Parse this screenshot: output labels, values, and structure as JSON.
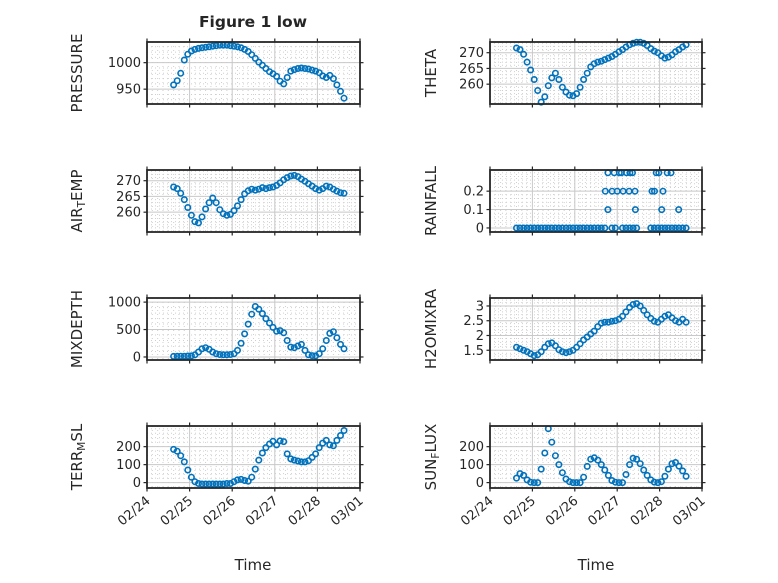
{
  "figure": {
    "title": "Figure 1 low",
    "xlabel": "Time",
    "colors": {
      "marker": "#0072BD",
      "axis": "#262626",
      "grid_major": "#c8c8c8",
      "grid_minor": "#cfcfcf",
      "text": "#262626",
      "background": "#ffffff"
    }
  },
  "time_axis": {
    "xlim": [
      0,
      5
    ],
    "xticks": [
      0,
      1,
      2,
      3,
      4,
      5
    ],
    "xticklabels": [
      "02/24",
      "02/25",
      "02/26",
      "02/27",
      "02/28",
      "03/01"
    ],
    "t": [
      0.625,
      0.708,
      0.792,
      0.875,
      0.958,
      1.042,
      1.125,
      1.208,
      1.292,
      1.375,
      1.458,
      1.542,
      1.625,
      1.708,
      1.792,
      1.875,
      1.958,
      2.042,
      2.125,
      2.208,
      2.292,
      2.375,
      2.458,
      2.542,
      2.625,
      2.708,
      2.792,
      2.875,
      2.958,
      3.042,
      3.125,
      3.208,
      3.292,
      3.375,
      3.458,
      3.542,
      3.625,
      3.708,
      3.792,
      3.875,
      3.958,
      4.042,
      4.125,
      4.208,
      4.292,
      4.375,
      4.458,
      4.542,
      4.625
    ]
  },
  "chart_data": [
    {
      "type": "scatter",
      "name": "PRESSURE",
      "row": 0,
      "col": 0,
      "ylabel": [
        [
          "PRESSURE",
          0
        ]
      ],
      "yticks": [
        950,
        1000
      ],
      "ylim": [
        922,
        1039
      ],
      "yminor": 10,
      "y": [
        958,
        966,
        980,
        1005,
        1016,
        1022,
        1025,
        1027,
        1028,
        1029,
        1030,
        1031,
        1032,
        1033,
        1033,
        1033,
        1032,
        1031,
        1030,
        1028,
        1025,
        1021,
        1015,
        1008,
        1001,
        995,
        989,
        983,
        979,
        974,
        965,
        960,
        972,
        984,
        987,
        989,
        990,
        989,
        988,
        986,
        984,
        981,
        975,
        972,
        976,
        970,
        958,
        946,
        933
      ]
    },
    {
      "type": "scatter",
      "name": "THETA",
      "row": 0,
      "col": 1,
      "ylabel": [
        [
          "THETA",
          0
        ]
      ],
      "yticks": [
        260,
        265,
        270
      ],
      "ylim": [
        253.7,
        273.4
      ],
      "yminor": 1,
      "y": [
        271.5,
        271.0,
        269.5,
        267.0,
        264.5,
        261.5,
        258.0,
        254.3,
        256.0,
        259.5,
        262.0,
        263.5,
        261.5,
        259.0,
        257.5,
        256.5,
        256.3,
        257.0,
        259.0,
        261.5,
        263.5,
        265.5,
        266.5,
        267.0,
        267.3,
        267.8,
        268.3,
        268.8,
        269.5,
        270.3,
        271.0,
        271.8,
        272.5,
        273.0,
        273.3,
        273.3,
        273.0,
        272.3,
        271.3,
        270.5,
        270.0,
        269.0,
        268.3,
        268.6,
        269.3,
        270.3,
        271.0,
        271.8,
        272.5
      ]
    },
    {
      "type": "scatter",
      "name": "AIR_TEMP",
      "row": 1,
      "col": 0,
      "ylabel": [
        [
          "AIR",
          0
        ],
        [
          "T",
          1
        ],
        [
          "EMP",
          0
        ]
      ],
      "yticks": [
        260,
        265,
        270
      ],
      "ylim": [
        253.7,
        273.4
      ],
      "yminor": 1,
      "y": [
        268.0,
        267.5,
        266.0,
        264.0,
        261.5,
        259.0,
        257.0,
        256.6,
        258.5,
        261.0,
        263.0,
        264.5,
        263.0,
        260.8,
        259.5,
        259.0,
        259.3,
        260.5,
        262.0,
        264.0,
        265.8,
        266.8,
        267.3,
        267.0,
        267.3,
        267.8,
        267.5,
        267.8,
        268.0,
        268.5,
        269.3,
        270.3,
        271.0,
        271.5,
        271.7,
        271.3,
        270.5,
        269.8,
        269.0,
        268.3,
        267.5,
        267.0,
        267.5,
        268.3,
        268.0,
        267.3,
        266.7,
        266.2,
        266.0
      ]
    },
    {
      "type": "scatter",
      "name": "RAINFALL",
      "row": 1,
      "col": 1,
      "ylabel": [
        [
          "RAINFALL",
          0
        ]
      ],
      "yticks": [
        0,
        0.1,
        0.2
      ],
      "ylim": [
        -0.022,
        0.315
      ],
      "yminor": 0.02,
      "x": [
        0.625,
        0.708,
        0.792,
        0.875,
        0.958,
        1.042,
        1.125,
        1.208,
        1.292,
        1.375,
        1.458,
        1.542,
        1.625,
        1.708,
        1.792,
        1.875,
        1.958,
        2.042,
        2.125,
        2.208,
        2.292,
        2.375,
        2.458,
        2.542,
        2.625,
        2.708,
        2.875,
        2.958,
        3.125,
        3.208,
        3.292,
        3.375,
        3.458,
        3.792,
        3.875,
        3.958,
        4.042,
        4.125,
        4.208,
        4.292,
        4.375,
        4.458,
        4.542,
        4.625,
        2.72,
        2.88,
        3.0,
        3.14,
        3.28,
        3.42,
        3.82,
        3.88,
        4.08,
        2.78,
        3.43,
        4.05,
        4.45,
        2.78,
        2.93,
        3.05,
        3.1,
        3.22,
        3.3,
        3.36,
        3.92,
        3.98,
        4.18,
        4.27
      ],
      "y": [
        0,
        0,
        0,
        0,
        0,
        0,
        0,
        0,
        0,
        0,
        0,
        0,
        0,
        0,
        0,
        0,
        0,
        0,
        0,
        0,
        0,
        0,
        0,
        0,
        0,
        0,
        0,
        0,
        0,
        0,
        0,
        0,
        0,
        0,
        0,
        0,
        0,
        0,
        0,
        0,
        0,
        0,
        0,
        0,
        0.2,
        0.2,
        0.2,
        0.2,
        0.2,
        0.2,
        0.2,
        0.2,
        0.2,
        0.1,
        0.1,
        0.1,
        0.1,
        0.3,
        0.3,
        0.3,
        0.3,
        0.3,
        0.3,
        0.3,
        0.3,
        0.3,
        0.3,
        0.3
      ]
    },
    {
      "type": "scatter",
      "name": "MIXDEPTH",
      "row": 2,
      "col": 0,
      "ylabel": [
        [
          "MIXDEPTH",
          0
        ]
      ],
      "yticks": [
        0,
        500,
        1000
      ],
      "ylim": [
        -55,
        1075
      ],
      "yminor": 100,
      "y": [
        10,
        12,
        15,
        15,
        18,
        20,
        40,
        90,
        150,
        170,
        140,
        90,
        60,
        45,
        40,
        40,
        45,
        60,
        120,
        250,
        420,
        600,
        780,
        920,
        870,
        790,
        700,
        620,
        540,
        470,
        480,
        440,
        300,
        180,
        170,
        200,
        230,
        120,
        40,
        25,
        20,
        60,
        150,
        300,
        430,
        460,
        350,
        230,
        150
      ]
    },
    {
      "type": "scatter",
      "name": "H2OMIXRA",
      "row": 2,
      "col": 1,
      "ylabel": [
        [
          "H2OMIXRA",
          0
        ]
      ],
      "yticks": [
        1.5,
        2,
        2.5,
        3
      ],
      "ylim": [
        1.17,
        3.27
      ],
      "yminor": 0.1,
      "y": [
        1.6,
        1.55,
        1.5,
        1.45,
        1.38,
        1.32,
        1.35,
        1.45,
        1.6,
        1.72,
        1.75,
        1.65,
        1.52,
        1.45,
        1.42,
        1.45,
        1.5,
        1.6,
        1.72,
        1.85,
        1.95,
        2.05,
        2.15,
        2.3,
        2.42,
        2.45,
        2.45,
        2.48,
        2.5,
        2.55,
        2.65,
        2.8,
        2.95,
        3.05,
        3.08,
        3.0,
        2.85,
        2.7,
        2.58,
        2.48,
        2.45,
        2.55,
        2.65,
        2.7,
        2.6,
        2.5,
        2.45,
        2.55,
        2.45
      ]
    },
    {
      "type": "scatter",
      "name": "TERR_MSL",
      "row": 3,
      "col": 0,
      "ylabel": [
        [
          "TERR",
          0
        ],
        [
          "M",
          1
        ],
        [
          "SL",
          0
        ]
      ],
      "yticks": [
        0,
        100,
        200
      ],
      "ylim": [
        -30,
        315
      ],
      "yminor": 25,
      "y": [
        185,
        175,
        150,
        115,
        70,
        30,
        5,
        -5,
        -8,
        -8,
        -8,
        -8,
        -8,
        -8,
        -8,
        -5,
        -5,
        5,
        15,
        18,
        12,
        8,
        30,
        75,
        125,
        165,
        195,
        215,
        230,
        210,
        232,
        228,
        160,
        132,
        125,
        120,
        115,
        115,
        122,
        140,
        160,
        195,
        220,
        235,
        210,
        205,
        235,
        262,
        290
      ]
    },
    {
      "type": "scatter",
      "name": "SUN_FLUX",
      "row": 3,
      "col": 1,
      "ylabel": [
        [
          "SUN",
          0
        ],
        [
          "F",
          1
        ],
        [
          "LUX",
          0
        ]
      ],
      "yticks": [
        0,
        100,
        200
      ],
      "ylim": [
        -30,
        315
      ],
      "yminor": 25,
      "y": [
        25,
        50,
        40,
        15,
        2,
        0,
        0,
        75,
        165,
        300,
        225,
        150,
        100,
        55,
        20,
        5,
        0,
        0,
        0,
        30,
        90,
        130,
        138,
        125,
        100,
        70,
        40,
        12,
        2,
        0,
        0,
        45,
        100,
        135,
        130,
        105,
        70,
        40,
        15,
        3,
        0,
        5,
        35,
        75,
        105,
        112,
        92,
        65,
        35
      ]
    }
  ]
}
